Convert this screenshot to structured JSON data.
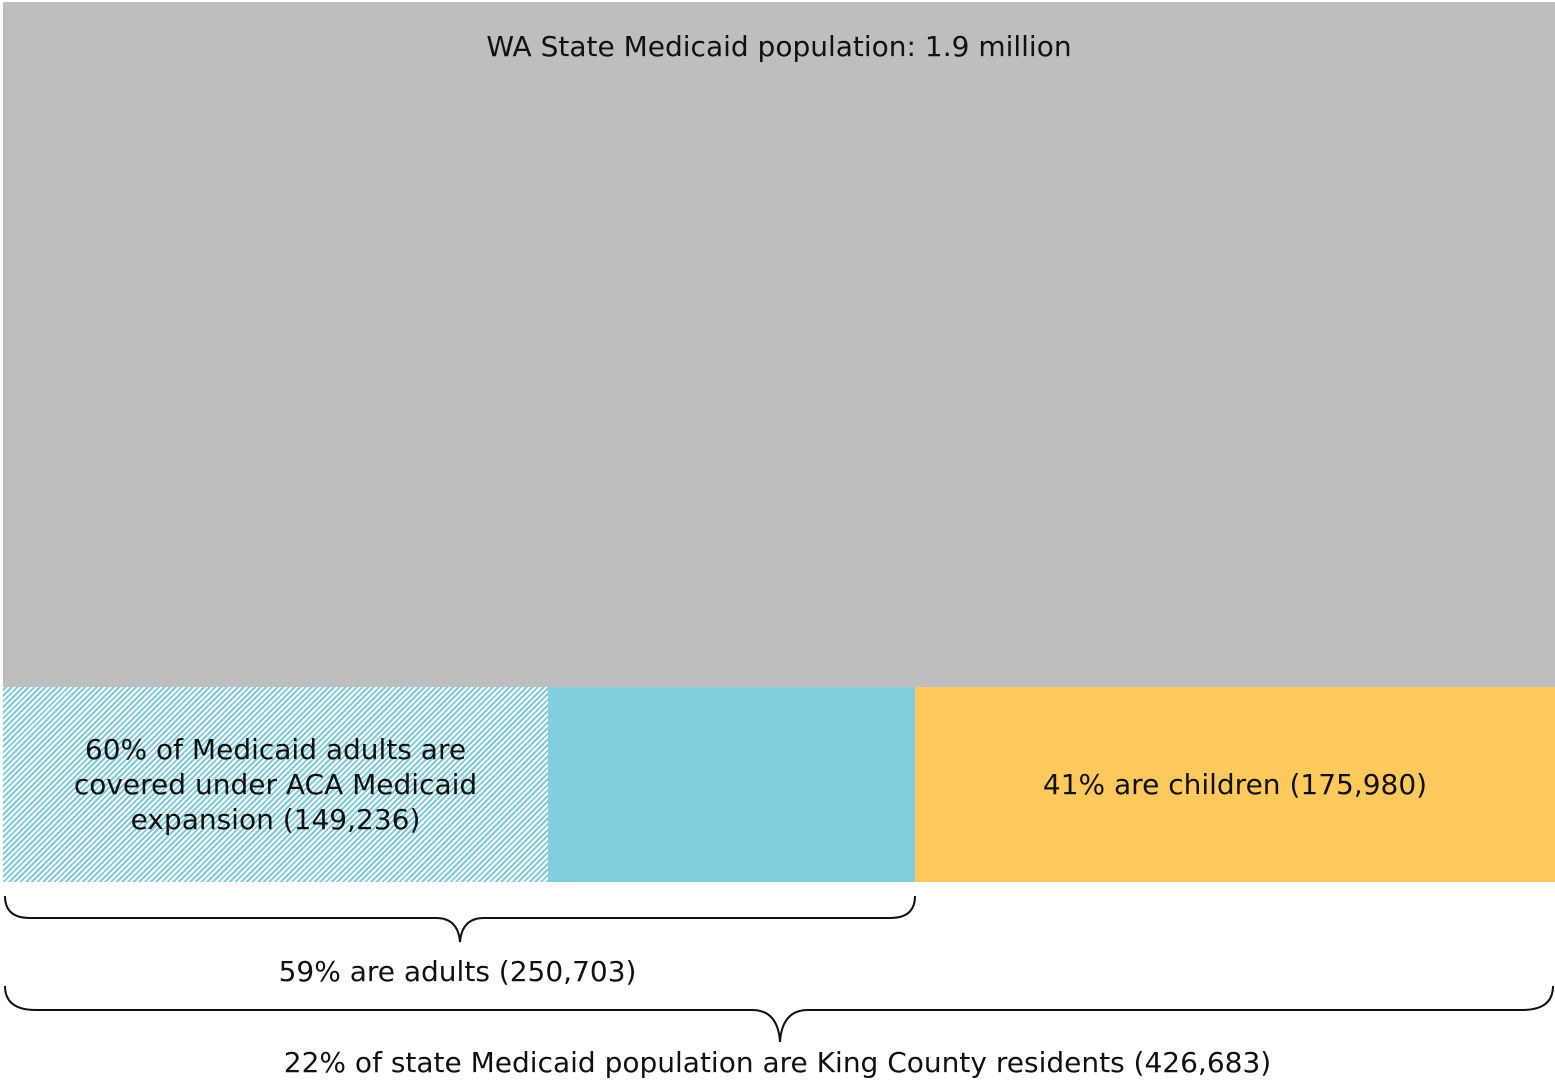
{
  "state": {
    "label": "WA State Medicaid population:  1.9 million",
    "color": "#bebebe"
  },
  "adults": {
    "expansion_label": "60% of Medicaid adults are covered under ACA Medicaid expansion (149,236)",
    "expansion_color": "#7ecbdb",
    "other_color": "#81cfdd",
    "caption": "59% are adults (250,703)"
  },
  "children": {
    "label": "41% are children (175,980)",
    "color": "#fec95c"
  },
  "county": {
    "caption": "22% of state Medicaid population are King County residents (426,683)"
  }
}
